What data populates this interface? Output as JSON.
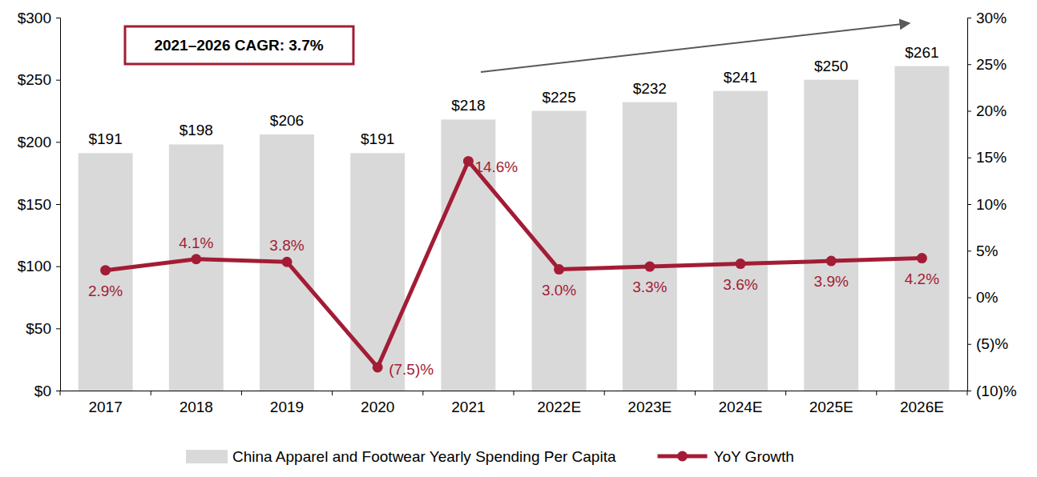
{
  "chart_data": {
    "type": "bar",
    "annotation": "2021–2026 CAGR: 3.7%",
    "categories": [
      "2017",
      "2018",
      "2019",
      "2020",
      "2021",
      "2022E",
      "2023E",
      "2024E",
      "2025E",
      "2026E"
    ],
    "series": [
      {
        "name": "China Apparel and Footwear Yearly Spending Per Capita",
        "type": "bar",
        "color": "#d9d9d9",
        "values": [
          191,
          198,
          206,
          191,
          218,
          225,
          232,
          241,
          250,
          261
        ],
        "value_labels": [
          "$191",
          "$198",
          "$206",
          "$191",
          "$218",
          "$225",
          "$232",
          "$241",
          "$250",
          "$261"
        ]
      },
      {
        "name": "YoY Growth",
        "type": "line",
        "axis": "y2",
        "color": "#a31c35",
        "marker": "circle",
        "values": [
          2.9,
          4.1,
          3.8,
          -7.5,
          14.6,
          3.0,
          3.3,
          3.6,
          3.9,
          4.2
        ],
        "value_labels": [
          "2.9%",
          "4.1%",
          "3.8%",
          "(7.5)%",
          "14.6%",
          "3.0%",
          "3.3%",
          "3.6%",
          "3.9%",
          "4.2%"
        ]
      }
    ],
    "ylim": [
      0,
      300
    ],
    "yticks": [
      {
        "value": 0,
        "label": "$0"
      },
      {
        "value": 50,
        "label": "$50"
      },
      {
        "value": 100,
        "label": "$100"
      },
      {
        "value": 150,
        "label": "$150"
      },
      {
        "value": 200,
        "label": "$200"
      },
      {
        "value": 250,
        "label": "$250"
      },
      {
        "value": 300,
        "label": "$300"
      }
    ],
    "y2lim": [
      -10,
      30
    ],
    "y2ticks": [
      {
        "value": -10,
        "label": "(10)%"
      },
      {
        "value": -5,
        "label": "(5)%"
      },
      {
        "value": 0,
        "label": "0%"
      },
      {
        "value": 5,
        "label": "5%"
      },
      {
        "value": 10,
        "label": "10%"
      },
      {
        "value": 15,
        "label": "15%"
      },
      {
        "value": 20,
        "label": "20%"
      },
      {
        "value": 25,
        "label": "25%"
      },
      {
        "value": 30,
        "label": "30%"
      }
    ],
    "data_labels": true,
    "legend": "bottom",
    "grid": false
  }
}
